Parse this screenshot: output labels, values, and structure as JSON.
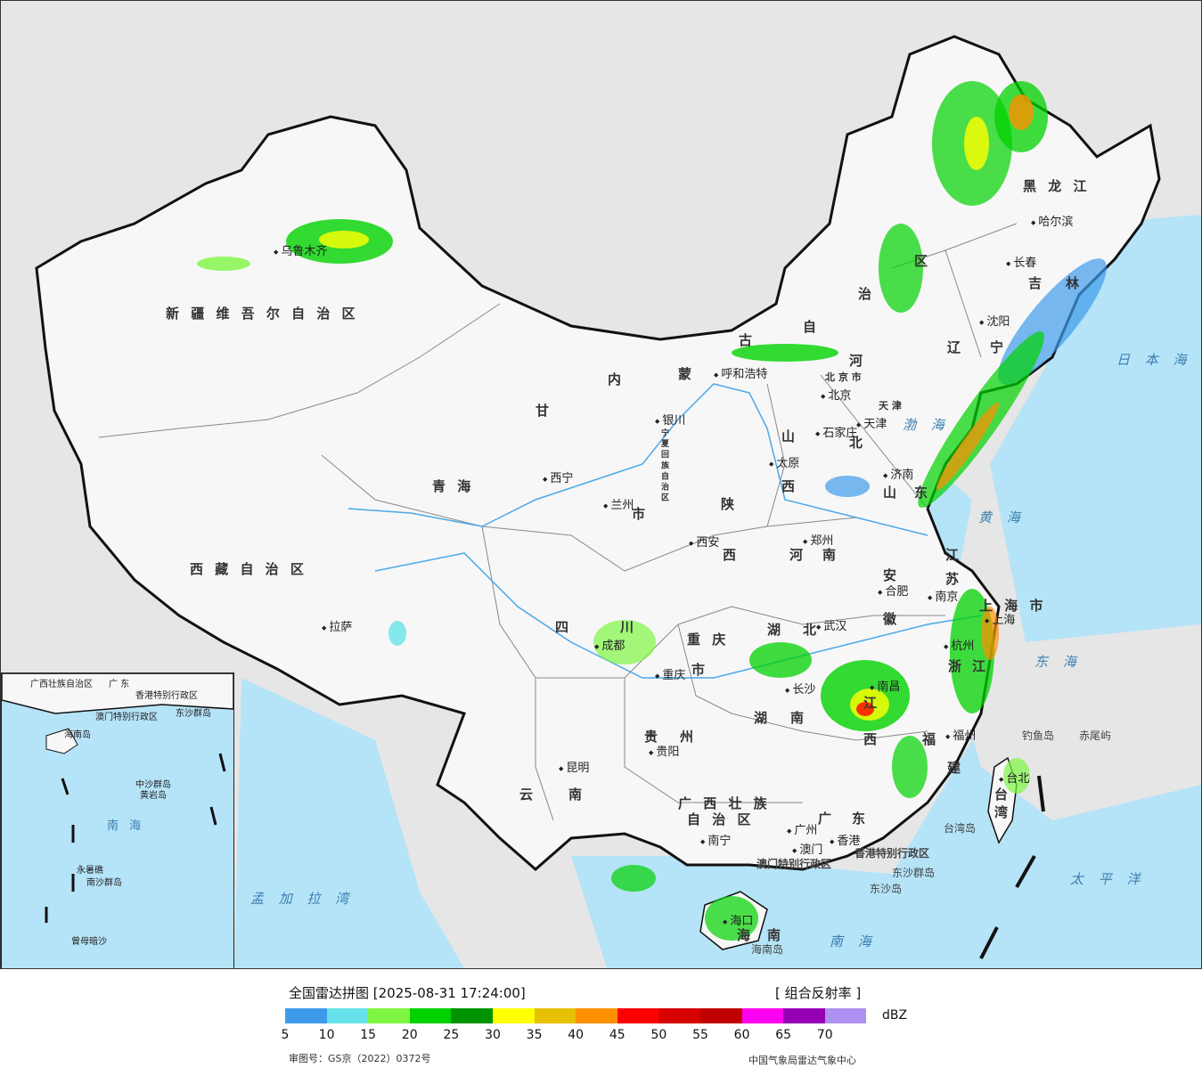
{
  "map": {
    "province_labels": [
      "新 疆 维 吾 尔 自 治 区",
      "西 藏 自 治 区",
      "青 海",
      "甘",
      "内",
      "蒙",
      "古",
      "自",
      "治",
      "区",
      "黑 龙 江",
      "吉",
      "林",
      "辽",
      "宁",
      "河",
      "北",
      "山",
      "西",
      "山",
      "东",
      "陕",
      "西",
      "河",
      "南",
      "江",
      "苏",
      "安",
      "徽",
      "湖",
      "北",
      "四",
      "川",
      "重 庆",
      "市",
      "湖",
      "南",
      "江",
      "西",
      "浙",
      "江",
      "福",
      "建",
      "贵",
      "州",
      "云",
      "南",
      "广 西 壮 族",
      "自 治 区",
      "广",
      "东",
      "海",
      "南",
      "台",
      "湾",
      "宁 夏 回 族 自 治 区",
      "上 海 市",
      "天 津",
      "北 京 市",
      "市"
    ],
    "cities": [
      "乌鲁木齐",
      "拉萨",
      "西宁",
      "兰州",
      "银川",
      "呼和浩特",
      "北京",
      "天津",
      "石家庄",
      "太原",
      "济南",
      "郑州",
      "西安",
      "成都",
      "重庆",
      "贵阳",
      "昆明",
      "南宁",
      "广州",
      "澳门",
      "香港",
      "海口",
      "长沙",
      "武汉",
      "南昌",
      "合肥",
      "南京",
      "上海",
      "杭州",
      "福州",
      "台北",
      "沈阳",
      "长春",
      "哈尔滨"
    ],
    "seas": [
      "日 本 海",
      "渤 海",
      "黄 海",
      "东 海",
      "太 平 洋",
      "南 海",
      "孟 加 拉 湾"
    ],
    "islands": [
      "钓鱼岛",
      "赤尾屿",
      "台湾岛",
      "东沙群岛",
      "东沙岛",
      "海南岛",
      "香港特别行政区",
      "澳门特别行政区"
    ],
    "inset_labels": [
      "广西壮族自治区",
      "广 东",
      "香港特别行政区",
      "澳门特别行政区",
      "东沙群岛",
      "海南岛",
      "中沙群岛",
      "南 海",
      "永暑礁",
      "南沙群岛",
      "曾母暗沙",
      "黄岩岛"
    ]
  },
  "legend": {
    "title": "全国雷达拼图 [2025-08-31 17:24:00]",
    "product": "[ 组合反射率 ]",
    "unit": "dBZ",
    "ticks": [
      "5",
      "10",
      "15",
      "20",
      "25",
      "30",
      "35",
      "40",
      "45",
      "50",
      "55",
      "60",
      "65",
      "70"
    ],
    "colors": [
      "#3d9be9",
      "#66e3ea",
      "#7ef542",
      "#00d200",
      "#009300",
      "#ffff00",
      "#e7c000",
      "#ff9000",
      "#ff0000",
      "#d60000",
      "#c00000",
      "#ff00f0",
      "#9600b4",
      "#ad90f0"
    ],
    "map_review_no": "审图号：GS京（2022）0372号",
    "source": "中国气象局雷达气象中心"
  }
}
